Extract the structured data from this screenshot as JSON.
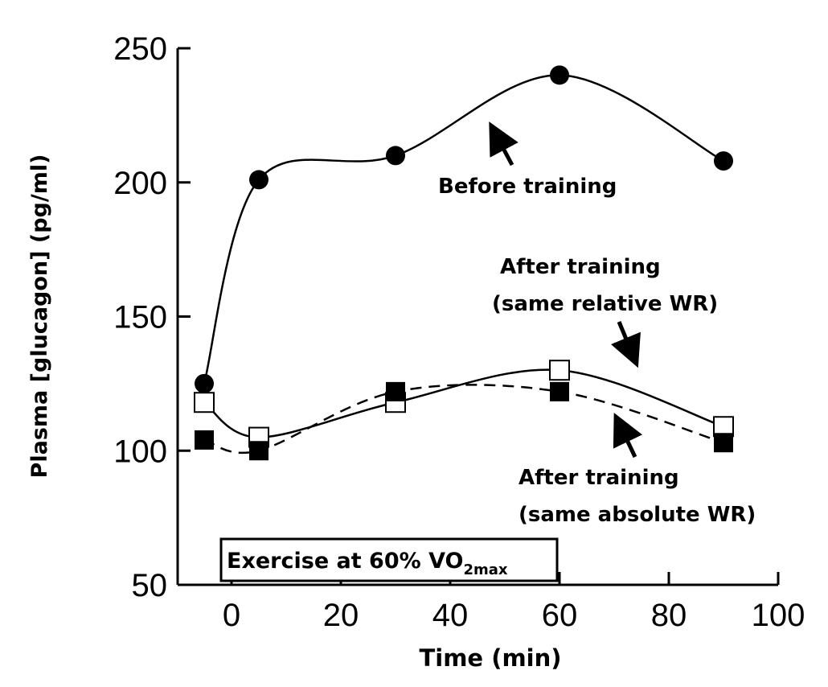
{
  "chart_data": {
    "type": "line",
    "title": "",
    "xlabel": "Time (min)",
    "ylabel": "Plasma [glucagon] (pg/ml)",
    "xlim": [
      -10,
      100
    ],
    "ylim": [
      50,
      250
    ],
    "x_ticks": [
      0,
      20,
      40,
      60,
      80,
      100
    ],
    "y_ticks": [
      50,
      100,
      150,
      200,
      250
    ],
    "x_tick_labels": [
      "0",
      "20",
      "40",
      "60",
      "80",
      "100"
    ],
    "y_tick_labels": [
      "50",
      "100",
      "150",
      "200",
      "250"
    ],
    "grid": false,
    "x": [
      -5,
      5,
      30,
      60,
      90
    ],
    "series": [
      {
        "name": "Before training",
        "marker": "filled-circle",
        "line": "solid",
        "values": [
          125,
          201,
          210,
          240,
          208
        ]
      },
      {
        "name": "After training (same relative WR)",
        "marker": "open-square",
        "line": "solid",
        "values": [
          118,
          105,
          118,
          130,
          109
        ]
      },
      {
        "name": "After training (same absolute WR)",
        "marker": "filled-square",
        "line": "dashed",
        "values": [
          104,
          100,
          122,
          122,
          103
        ]
      }
    ],
    "annotations": {
      "before": "Before training",
      "relative_line1": "After training",
      "relative_line2": "(same relative WR)",
      "absolute_line1": "After training",
      "absolute_line2": "(same absolute WR)",
      "exercise_text": "Exercise at 60% VO",
      "exercise_sub": "2max"
    }
  }
}
